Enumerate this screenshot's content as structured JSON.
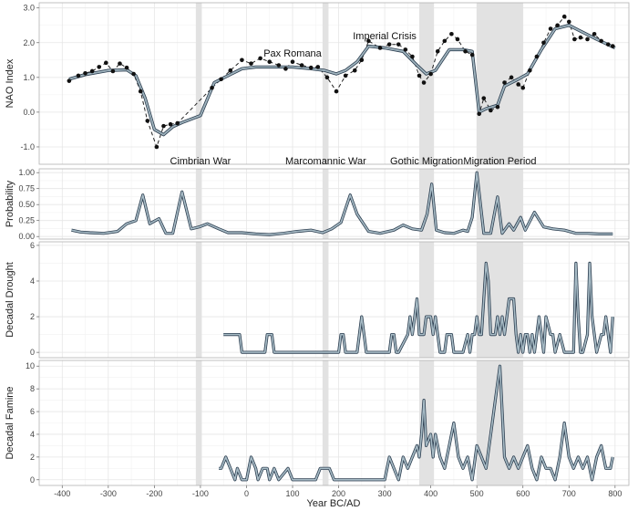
{
  "chart_data": {
    "type": "line",
    "xlabel": "Year BC/AD",
    "xlim": [
      -450,
      830
    ],
    "xticks": [
      -400,
      -300,
      -200,
      -100,
      0,
      100,
      200,
      300,
      400,
      500,
      600,
      700,
      800
    ],
    "shaded_periods": [
      {
        "start": -110,
        "end": -97
      },
      {
        "start": 165,
        "end": 178
      },
      {
        "start": 375,
        "end": 407
      },
      {
        "start": 500,
        "end": 600
      }
    ],
    "panels": [
      {
        "id": "nao",
        "ylabel": "NAO Index",
        "ylim": [
          -1.5,
          3.15
        ],
        "yticks": [
          -1.0,
          0.0,
          1.0,
          2.0,
          3.0
        ],
        "yticklabels": [
          "-1.0",
          "0.0",
          "1.0",
          "2.0",
          "3.0"
        ],
        "points": [
          {
            "x": -385,
            "y": 0.9
          },
          {
            "x": -365,
            "y": 1.05
          },
          {
            "x": -350,
            "y": 1.12
          },
          {
            "x": -335,
            "y": 1.18
          },
          {
            "x": -320,
            "y": 1.3
          },
          {
            "x": -305,
            "y": 1.42
          },
          {
            "x": -290,
            "y": 1.18
          },
          {
            "x": -275,
            "y": 1.4
          },
          {
            "x": -260,
            "y": 1.28
          },
          {
            "x": -245,
            "y": 1.1
          },
          {
            "x": -230,
            "y": 0.6
          },
          {
            "x": -215,
            "y": -0.25
          },
          {
            "x": -195,
            "y": -1.0
          },
          {
            "x": -180,
            "y": -0.4
          },
          {
            "x": -165,
            "y": -0.35
          },
          {
            "x": -150,
            "y": -0.32
          },
          {
            "x": -75,
            "y": 0.7
          },
          {
            "x": -55,
            "y": 0.95
          },
          {
            "x": -35,
            "y": 1.2
          },
          {
            "x": -10,
            "y": 1.5
          },
          {
            "x": 10,
            "y": 1.4
          },
          {
            "x": 30,
            "y": 1.55
          },
          {
            "x": 50,
            "y": 1.45
          },
          {
            "x": 70,
            "y": 1.35
          },
          {
            "x": 85,
            "y": 1.25
          },
          {
            "x": 100,
            "y": 1.45
          },
          {
            "x": 120,
            "y": 1.35
          },
          {
            "x": 140,
            "y": 1.28
          },
          {
            "x": 155,
            "y": 1.3
          },
          {
            "x": 175,
            "y": 1.0
          },
          {
            "x": 195,
            "y": 0.6
          },
          {
            "x": 215,
            "y": 1.05
          },
          {
            "x": 235,
            "y": 1.2
          },
          {
            "x": 250,
            "y": 1.5
          },
          {
            "x": 265,
            "y": 2.05
          },
          {
            "x": 290,
            "y": 1.85
          },
          {
            "x": 310,
            "y": 1.95
          },
          {
            "x": 330,
            "y": 1.95
          },
          {
            "x": 345,
            "y": 1.8
          },
          {
            "x": 360,
            "y": 1.6
          },
          {
            "x": 375,
            "y": 1.05
          },
          {
            "x": 385,
            "y": 0.85
          },
          {
            "x": 400,
            "y": 1.1
          },
          {
            "x": 415,
            "y": 1.75
          },
          {
            "x": 430,
            "y": 2.05
          },
          {
            "x": 445,
            "y": 2.25
          },
          {
            "x": 458,
            "y": 2.1
          },
          {
            "x": 475,
            "y": 1.75
          },
          {
            "x": 490,
            "y": 1.65
          },
          {
            "x": 505,
            "y": -0.05
          },
          {
            "x": 515,
            "y": 0.4
          },
          {
            "x": 530,
            "y": 0.05
          },
          {
            "x": 545,
            "y": 0.15
          },
          {
            "x": 560,
            "y": 0.85
          },
          {
            "x": 575,
            "y": 1.0
          },
          {
            "x": 590,
            "y": 0.8
          },
          {
            "x": 600,
            "y": 0.7
          },
          {
            "x": 615,
            "y": 1.2
          },
          {
            "x": 630,
            "y": 1.6
          },
          {
            "x": 645,
            "y": 2.0
          },
          {
            "x": 660,
            "y": 2.4
          },
          {
            "x": 675,
            "y": 2.5
          },
          {
            "x": 690,
            "y": 2.75
          },
          {
            "x": 700,
            "y": 2.6
          },
          {
            "x": 712,
            "y": 2.1
          },
          {
            "x": 725,
            "y": 2.15
          },
          {
            "x": 740,
            "y": 2.1
          },
          {
            "x": 755,
            "y": 2.25
          },
          {
            "x": 770,
            "y": 2.05
          },
          {
            "x": 785,
            "y": 1.95
          },
          {
            "x": 795,
            "y": 1.9
          }
        ],
        "smooth": {
          "x": [
            -385,
            -350,
            -300,
            -260,
            -240,
            -220,
            -200,
            -180,
            -160,
            -140,
            -100,
            -70,
            -40,
            -10,
            20,
            60,
            100,
            140,
            170,
            195,
            215,
            240,
            265,
            300,
            340,
            370,
            390,
            410,
            440,
            470,
            490,
            505,
            520,
            545,
            560,
            590,
            610,
            640,
            670,
            700,
            730,
            760,
            800
          ],
          "y": [
            0.95,
            1.08,
            1.2,
            1.22,
            1.05,
            0.4,
            -0.5,
            -0.65,
            -0.42,
            -0.3,
            -0.1,
            0.85,
            1.05,
            1.25,
            1.3,
            1.3,
            1.3,
            1.25,
            1.2,
            1.1,
            1.2,
            1.45,
            1.9,
            1.85,
            1.75,
            1.35,
            1.1,
            1.2,
            1.8,
            1.8,
            1.75,
            0.0,
            0.1,
            0.2,
            0.75,
            0.95,
            1.1,
            1.8,
            2.4,
            2.5,
            2.3,
            2.1,
            1.85
          ]
        },
        "annotations": [
          {
            "text": "Pax Romana",
            "x": 100,
            "y": 1.7
          },
          {
            "text": "Imperial Crisis",
            "x": 300,
            "y": 2.2
          },
          {
            "text": "Cimbrian War",
            "x": -100,
            "y": -1.4
          },
          {
            "text": "Marcomannic War",
            "x": 172,
            "y": -1.4
          },
          {
            "text": "Gothic Migration",
            "x": 391,
            "y": -1.4
          },
          {
            "text": "Migration Period",
            "x": 550,
            "y": -1.4
          }
        ]
      },
      {
        "id": "prob",
        "ylabel": "Probability",
        "ylim": [
          -0.04,
          1.06
        ],
        "yticks": [
          0.0,
          0.25,
          0.5,
          0.75,
          1.0
        ],
        "yticklabels": [
          "0.00",
          "0.25",
          "0.50",
          "0.75",
          "1.00"
        ],
        "x": [
          -380,
          -360,
          -340,
          -310,
          -280,
          -260,
          -240,
          -225,
          -210,
          -190,
          -175,
          -160,
          -140,
          -120,
          -103,
          -85,
          -60,
          -40,
          -10,
          20,
          50,
          80,
          110,
          140,
          165,
          185,
          205,
          225,
          240,
          265,
          290,
          320,
          340,
          360,
          380,
          392,
          402,
          412,
          430,
          450,
          470,
          480,
          490,
          500,
          515,
          530,
          545,
          555,
          570,
          580,
          595,
          605,
          625,
          645,
          665,
          690,
          715,
          740,
          765,
          795
        ],
        "values": [
          0.1,
          0.07,
          0.06,
          0.05,
          0.08,
          0.2,
          0.25,
          0.65,
          0.2,
          0.28,
          0.05,
          0.05,
          0.7,
          0.12,
          0.15,
          0.2,
          0.12,
          0.06,
          0.06,
          0.04,
          0.03,
          0.05,
          0.08,
          0.1,
          0.06,
          0.12,
          0.22,
          0.65,
          0.35,
          0.08,
          0.05,
          0.1,
          0.18,
          0.12,
          0.1,
          0.35,
          0.82,
          0.1,
          0.06,
          0.05,
          0.1,
          0.08,
          0.3,
          1.0,
          0.05,
          0.05,
          0.62,
          0.05,
          0.2,
          0.1,
          0.3,
          0.1,
          0.38,
          0.15,
          0.12,
          0.1,
          0.05,
          0.05,
          0.04,
          0.04
        ]
      },
      {
        "id": "drought",
        "ylabel": "Decadal Drought",
        "ylim": [
          -0.3,
          6.2
        ],
        "yticks": [
          0,
          2,
          4,
          6
        ],
        "yticklabels": [
          "0",
          "2",
          "4",
          "6"
        ],
        "x": [
          -50,
          -20,
          -15,
          -10,
          40,
          45,
          55,
          60,
          70,
          75,
          80,
          200,
          205,
          210,
          215,
          220,
          240,
          245,
          250,
          255,
          260,
          310,
          315,
          320,
          325,
          330,
          350,
          355,
          360,
          365,
          370,
          375,
          380,
          385,
          390,
          400,
          405,
          410,
          415,
          420,
          430,
          435,
          440,
          445,
          450,
          470,
          480,
          485,
          490,
          495,
          500,
          505,
          510,
          515,
          520,
          525,
          530,
          535,
          540,
          545,
          550,
          555,
          560,
          565,
          570,
          575,
          580,
          585,
          590,
          595,
          600,
          605,
          610,
          615,
          620,
          625,
          630,
          635,
          640,
          645,
          650,
          660,
          665,
          670,
          680,
          690,
          700,
          710,
          715,
          720,
          725,
          730,
          740,
          745,
          750,
          760,
          770,
          775,
          780,
          790,
          795
        ],
        "values": [
          1,
          1,
          1,
          0,
          0,
          1,
          1,
          0,
          0,
          0,
          0,
          0,
          1,
          1,
          0,
          0,
          0,
          1,
          2,
          1,
          0,
          0,
          1,
          1,
          0,
          0,
          1,
          2,
          1,
          2,
          3,
          1,
          1,
          1,
          2,
          2,
          1,
          2,
          1,
          0,
          0,
          1,
          1,
          1,
          0,
          0,
          1,
          0,
          1,
          1,
          2,
          1,
          1,
          3,
          5,
          4,
          1,
          1,
          1,
          2,
          1,
          2,
          1,
          2,
          3,
          3,
          3,
          1,
          0,
          1,
          0,
          1,
          1,
          0,
          1,
          0,
          1,
          2,
          1,
          0,
          2,
          1,
          1,
          0,
          1,
          0,
          0,
          0,
          5,
          2,
          0,
          0,
          1,
          5,
          2,
          0,
          1,
          1,
          2,
          0,
          2
        ]
      },
      {
        "id": "famine",
        "ylabel": "Decadal Famine",
        "ylim": [
          -0.5,
          10.5
        ],
        "yticks": [
          0,
          2,
          4,
          6,
          8,
          10
        ],
        "yticklabels": [
          "0",
          "2",
          "4",
          "6",
          "8",
          "10"
        ],
        "x": [
          -60,
          -55,
          -45,
          -35,
          -25,
          -20,
          -10,
          -5,
          0,
          10,
          20,
          25,
          35,
          45,
          50,
          60,
          70,
          90,
          100,
          110,
          130,
          150,
          160,
          170,
          180,
          190,
          200,
          260,
          300,
          310,
          320,
          330,
          340,
          350,
          360,
          370,
          375,
          380,
          385,
          390,
          400,
          405,
          410,
          420,
          430,
          440,
          450,
          460,
          470,
          480,
          490,
          500,
          510,
          520,
          530,
          540,
          550,
          560,
          570,
          580,
          590,
          600,
          610,
          620,
          630,
          640,
          650,
          660,
          670,
          680,
          690,
          700,
          710,
          720,
          730,
          740,
          750,
          760,
          770,
          780,
          790,
          795
        ],
        "values": [
          1,
          1,
          2,
          1,
          0,
          1,
          0,
          0,
          0,
          2,
          1,
          0,
          1,
          1,
          0,
          1,
          0,
          1,
          0,
          0,
          0,
          0,
          1,
          1,
          1,
          0,
          0,
          0,
          0,
          2,
          1,
          0,
          2,
          1,
          2,
          3,
          2,
          4,
          7,
          3,
          4,
          2,
          4,
          2,
          1,
          3,
          5,
          2,
          1,
          2,
          0,
          3,
          2,
          1,
          4,
          7,
          10,
          2,
          1,
          2,
          1,
          2,
          3,
          1,
          0,
          2,
          1,
          1,
          0,
          2,
          5,
          2,
          1,
          2,
          1,
          2,
          0,
          2,
          3,
          1,
          1,
          2
        ]
      }
    ]
  }
}
